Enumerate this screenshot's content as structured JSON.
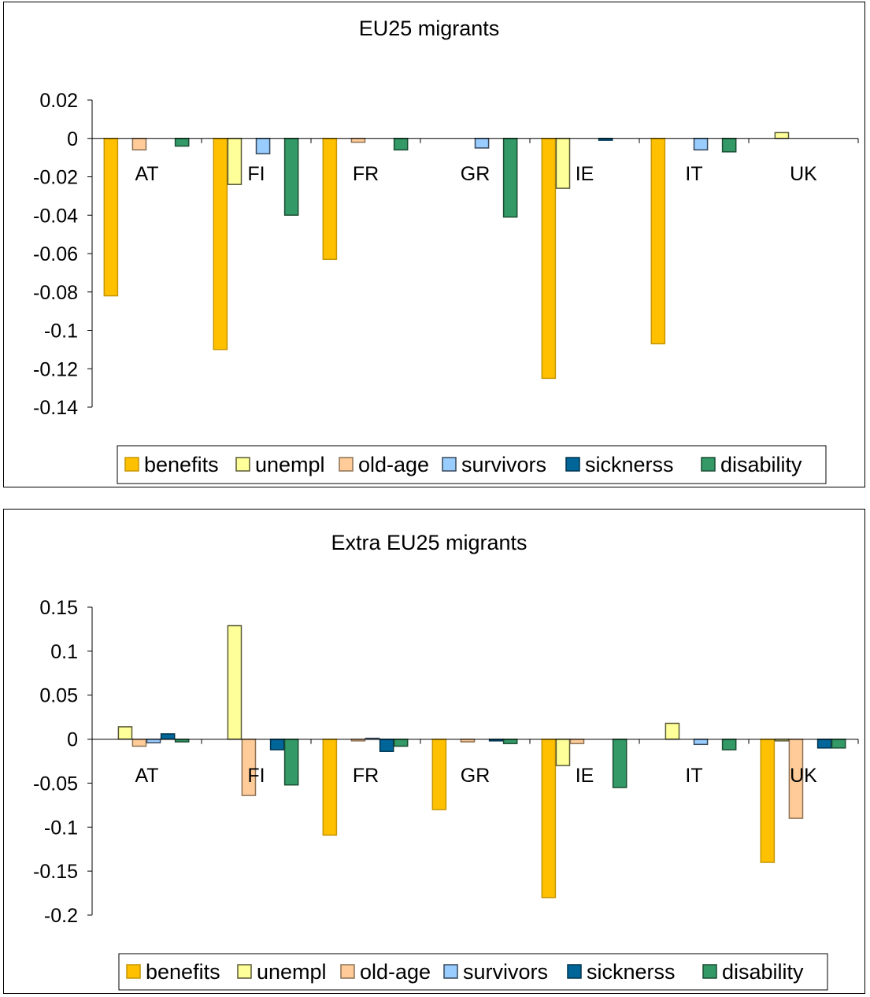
{
  "chart_data": [
    {
      "type": "bar",
      "title": "EU25 migrants",
      "categories": [
        "AT",
        "FI",
        "FR",
        "GR",
        "IE",
        "IT",
        "UK"
      ],
      "ylim": [
        -0.14,
        0.02
      ],
      "yticks": [
        0.02,
        0,
        -0.02,
        -0.04,
        -0.06,
        -0.08,
        -0.1,
        -0.12,
        -0.14
      ],
      "grid": false,
      "legend": "bottom",
      "series": [
        {
          "name": "benefits",
          "color": "#FFC000",
          "values": [
            -0.082,
            -0.11,
            -0.063,
            0,
            -0.125,
            -0.107,
            0
          ]
        },
        {
          "name": "unempl",
          "color": "#FFFF99",
          "values": [
            0,
            -0.024,
            0,
            0,
            -0.026,
            0,
            0.003
          ]
        },
        {
          "name": "old-age",
          "color": "#FFCC99",
          "values": [
            -0.006,
            0,
            -0.002,
            0,
            0,
            0,
            0
          ]
        },
        {
          "name": "survivors",
          "color": "#99CCFF",
          "values": [
            0,
            -0.008,
            0,
            -0.005,
            0,
            -0.006,
            0
          ]
        },
        {
          "name": "sicknerss",
          "color": "#006699",
          "values": [
            0,
            0,
            0,
            0,
            -0.001,
            0,
            0
          ]
        },
        {
          "name": "disability",
          "color": "#339966",
          "values": [
            -0.004,
            -0.04,
            -0.006,
            -0.041,
            0,
            -0.007,
            0
          ]
        }
      ]
    },
    {
      "type": "bar",
      "title": "Extra EU25 migrants",
      "categories": [
        "AT",
        "FI",
        "FR",
        "GR",
        "IE",
        "IT",
        "UK"
      ],
      "ylim": [
        -0.2,
        0.15
      ],
      "yticks": [
        0.15,
        0.1,
        0.05,
        0,
        -0.05,
        -0.1,
        -0.15,
        -0.2
      ],
      "grid": false,
      "legend": "bottom",
      "series": [
        {
          "name": "benefits",
          "color": "#FFC000",
          "values": [
            0,
            0,
            -0.109,
            -0.08,
            -0.18,
            0,
            -0.14
          ]
        },
        {
          "name": "unempl",
          "color": "#FFFF99",
          "values": [
            0.014,
            0.129,
            0,
            0,
            -0.03,
            0.018,
            -0.002
          ]
        },
        {
          "name": "old-age",
          "color": "#FFCC99",
          "values": [
            -0.008,
            -0.064,
            -0.002,
            -0.003,
            -0.005,
            0,
            -0.09
          ]
        },
        {
          "name": "survivors",
          "color": "#99CCFF",
          "values": [
            -0.004,
            0,
            0.001,
            0,
            0,
            -0.006,
            0
          ]
        },
        {
          "name": "sicknerss",
          "color": "#006699",
          "values": [
            0.006,
            -0.012,
            -0.014,
            -0.002,
            0,
            0,
            -0.01
          ]
        },
        {
          "name": "disability",
          "color": "#339966",
          "values": [
            -0.003,
            -0.052,
            -0.008,
            -0.005,
            -0.055,
            -0.012,
            -0.01
          ]
        }
      ]
    }
  ]
}
